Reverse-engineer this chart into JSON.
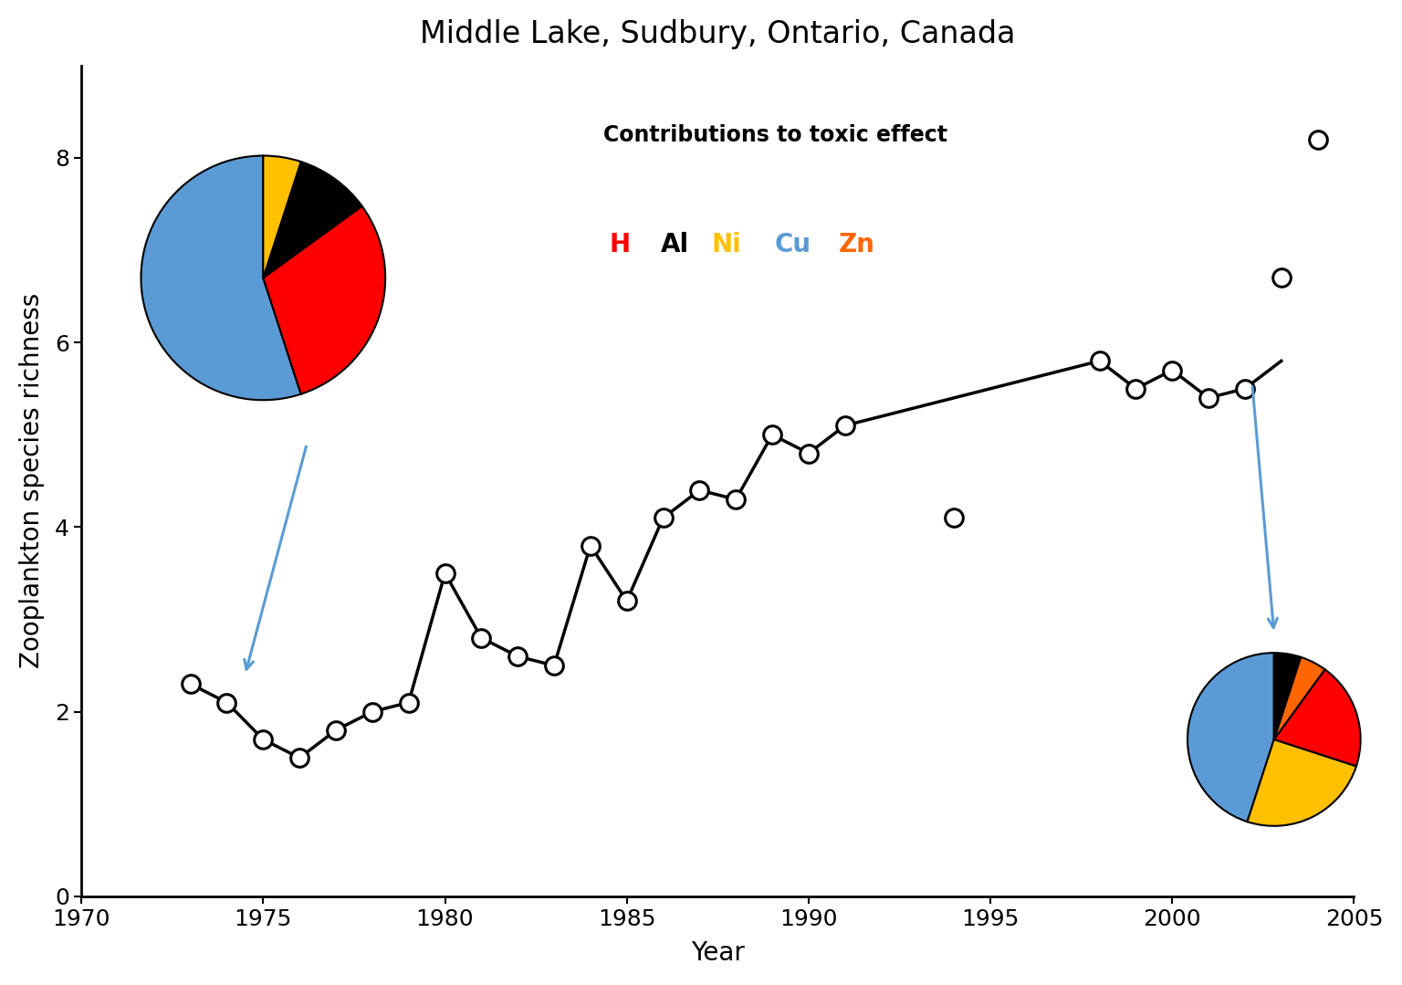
{
  "title": "Middle Lake, Sudbury, Ontario, Canada",
  "xlabel": "Year",
  "ylabel": "Zooplankton species richness",
  "xlim": [
    1970,
    2005
  ],
  "ylim": [
    0,
    9
  ],
  "yticks": [
    0,
    2,
    4,
    6,
    8
  ],
  "xticks": [
    1970,
    1975,
    1980,
    1985,
    1990,
    1995,
    2000,
    2005
  ],
  "scatter_years": [
    1973,
    1974,
    1975,
    1976,
    1977,
    1978,
    1979,
    1980,
    1981,
    1982,
    1983,
    1984,
    1985,
    1986,
    1987,
    1988,
    1989,
    1990,
    1991,
    1994,
    1998,
    1999,
    2000,
    2001,
    2002,
    2003,
    2004
  ],
  "scatter_richness": [
    2.3,
    2.1,
    1.7,
    1.5,
    1.8,
    2.0,
    2.1,
    3.5,
    2.8,
    2.6,
    2.5,
    3.8,
    3.2,
    4.1,
    4.4,
    4.3,
    5.0,
    4.8,
    5.1,
    4.1,
    5.8,
    5.5,
    5.7,
    5.4,
    5.5,
    6.7,
    8.2
  ],
  "line_years": [
    1973,
    1974,
    1975,
    1976,
    1977,
    1978,
    1979,
    1980,
    1981,
    1982,
    1983,
    1984,
    1985,
    1986,
    1987,
    1988,
    1989,
    1990,
    1991,
    1998,
    1999,
    2000,
    2001,
    2002,
    2003
  ],
  "line_richness": [
    2.3,
    2.1,
    1.7,
    1.5,
    1.8,
    2.0,
    2.1,
    3.5,
    2.8,
    2.6,
    2.5,
    3.8,
    3.2,
    4.1,
    4.4,
    4.3,
    5.0,
    4.8,
    5.1,
    5.8,
    5.5,
    5.7,
    5.4,
    5.5,
    5.8
  ],
  "pie1_values": [
    55,
    30,
    10,
    5
  ],
  "pie1_colors": [
    "#5b9bd5",
    "#ff0000",
    "#000000",
    "#ffc000"
  ],
  "pie1_startangle": 90,
  "pie2_values": [
    45,
    25,
    20,
    5,
    5
  ],
  "pie2_colors": [
    "#5b9bd5",
    "#ffc000",
    "#ff0000",
    "#ff6600",
    "#000000"
  ],
  "pie2_startangle": 90,
  "legend_title": "Contributions to toxic effect",
  "legend_items": [
    {
      "label": "H",
      "color": "#ff0000"
    },
    {
      "label": "Al",
      "color": "#000000"
    },
    {
      "label": "Ni",
      "color": "#ffc000"
    },
    {
      "label": "Cu",
      "color": "#5b9bd5"
    },
    {
      "label": "Zn",
      "color": "#ff6600"
    }
  ],
  "background_color": "#ffffff",
  "title_fontsize": 24,
  "label_fontsize": 20,
  "tick_fontsize": 18
}
